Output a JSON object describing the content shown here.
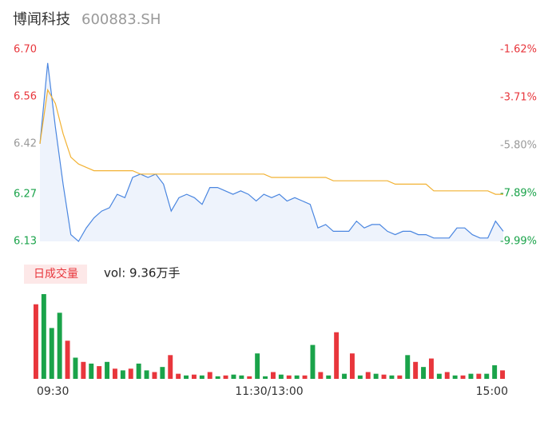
{
  "header": {
    "title": "博闻科技",
    "code": "600883.SH"
  },
  "chart_data": [
    {
      "type": "line",
      "ylim": [
        6.13,
        6.7
      ],
      "yticks": [
        {
          "value": 6.7,
          "label": "6.70"
        },
        {
          "value": 6.56,
          "label": "6.56"
        },
        {
          "value": 6.42,
          "label": "6.42"
        },
        {
          "value": 6.27,
          "label": "6.27"
        },
        {
          "value": 6.13,
          "label": "6.13"
        }
      ],
      "ytick_colors": [
        "#e8363c",
        "#e8363c",
        "#999999",
        "#1aa34a",
        "#1aa34a"
      ],
      "y2lim": [
        -9.99,
        -1.62
      ],
      "y2ticks": [
        {
          "value": -1.62,
          "label": "-1.62%"
        },
        {
          "value": -3.71,
          "label": "-3.71%"
        },
        {
          "value": -5.8,
          "label": "-5.80%"
        },
        {
          "value": -7.89,
          "label": "-7.89%"
        },
        {
          "value": -9.99,
          "label": "-9.99%"
        }
      ],
      "xlim": [
        0,
        60
      ],
      "series": [
        {
          "color": "#4a86e0",
          "area": true,
          "values": [
            6.42,
            6.66,
            6.47,
            6.3,
            6.15,
            6.13,
            6.17,
            6.2,
            6.22,
            6.23,
            6.27,
            6.26,
            6.32,
            6.33,
            6.32,
            6.33,
            6.3,
            6.22,
            6.26,
            6.27,
            6.26,
            6.24,
            6.29,
            6.29,
            6.28,
            6.27,
            6.28,
            6.27,
            6.25,
            6.27,
            6.26,
            6.27,
            6.25,
            6.26,
            6.25,
            6.24,
            6.17,
            6.18,
            6.16,
            6.16,
            6.16,
            6.19,
            6.17,
            6.18,
            6.18,
            6.16,
            6.15,
            6.16,
            6.16,
            6.15,
            6.15,
            6.14,
            6.14,
            6.14,
            6.17,
            6.17,
            6.15,
            6.14,
            6.14,
            6.19,
            6.16
          ]
        },
        {
          "color": "#f2b233",
          "area": false,
          "values": [
            6.42,
            6.58,
            6.54,
            6.45,
            6.38,
            6.36,
            6.35,
            6.34,
            6.34,
            6.34,
            6.34,
            6.34,
            6.34,
            6.33,
            6.33,
            6.33,
            6.33,
            6.33,
            6.33,
            6.33,
            6.33,
            6.33,
            6.33,
            6.33,
            6.33,
            6.33,
            6.33,
            6.33,
            6.33,
            6.33,
            6.32,
            6.32,
            6.32,
            6.32,
            6.32,
            6.32,
            6.32,
            6.32,
            6.31,
            6.31,
            6.31,
            6.31,
            6.31,
            6.31,
            6.31,
            6.31,
            6.3,
            6.3,
            6.3,
            6.3,
            6.3,
            6.28,
            6.28,
            6.28,
            6.28,
            6.28,
            6.28,
            6.28,
            6.28,
            6.27,
            6.27
          ]
        }
      ]
    },
    {
      "type": "bar",
      "title": "日成交量",
      "subtitle": "vol: 9.36万手",
      "ylim": [
        0,
        100
      ],
      "xlim": [
        0,
        60
      ],
      "xticks": [
        {
          "value": 0,
          "label": "09:30"
        },
        {
          "value": 30,
          "label": "11:30/13:00"
        },
        {
          "value": 60,
          "label": "15:00"
        }
      ],
      "values": [
        88,
        100,
        60,
        78,
        45,
        25,
        20,
        18,
        15,
        20,
        12,
        10,
        12,
        18,
        10,
        8,
        14,
        28,
        6,
        4,
        5,
        4,
        8,
        3,
        4,
        5,
        4,
        3,
        30,
        3,
        8,
        5,
        4,
        4,
        4,
        40,
        8,
        4,
        55,
        6,
        30,
        4,
        8,
        6,
        5,
        4,
        4,
        28,
        20,
        14,
        24,
        6,
        8,
        4,
        4,
        6,
        6,
        6,
        16,
        10
      ],
      "colors": [
        "#e8363c",
        "#1aa34a",
        "#1aa34a",
        "#1aa34a",
        "#e8363c",
        "#1aa34a",
        "#e8363c",
        "#1aa34a",
        "#e8363c",
        "#1aa34a",
        "#e8363c",
        "#1aa34a",
        "#e8363c",
        "#1aa34a",
        "#1aa34a",
        "#e8363c",
        "#1aa34a",
        "#e8363c",
        "#e8363c",
        "#1aa34a",
        "#e8363c",
        "#1aa34a",
        "#e8363c",
        "#1aa34a",
        "#e8363c",
        "#1aa34a",
        "#1aa34a",
        "#e8363c",
        "#1aa34a",
        "#1aa34a",
        "#e8363c",
        "#1aa34a",
        "#e8363c",
        "#1aa34a",
        "#e8363c",
        "#1aa34a",
        "#e8363c",
        "#1aa34a",
        "#e8363c",
        "#1aa34a",
        "#e8363c",
        "#1aa34a",
        "#e8363c",
        "#1aa34a",
        "#e8363c",
        "#1aa34a",
        "#e8363c",
        "#1aa34a",
        "#e8363c",
        "#1aa34a",
        "#e8363c",
        "#1aa34a",
        "#e8363c",
        "#1aa34a",
        "#e8363c",
        "#1aa34a",
        "#e8363c",
        "#1aa34a",
        "#1aa34a",
        "#e8363c"
      ]
    }
  ]
}
